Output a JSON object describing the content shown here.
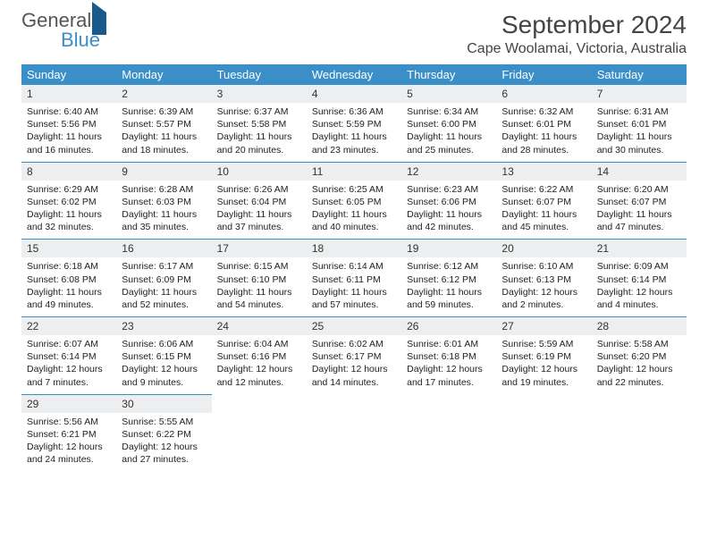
{
  "logo": {
    "text1": "General",
    "text2": "Blue"
  },
  "title": "September 2024",
  "location": "Cape Woolamai, Victoria, Australia",
  "day_headers": [
    "Sunday",
    "Monday",
    "Tuesday",
    "Wednesday",
    "Thursday",
    "Friday",
    "Saturday"
  ],
  "colors": {
    "header_bg": "#3a8fc8",
    "header_fg": "#ffffff",
    "daynum_bg": "#eceeef",
    "divider": "#3a8fc8",
    "text": "#222222"
  },
  "weeks": [
    [
      {
        "n": "1",
        "sr": "Sunrise: 6:40 AM",
        "ss": "Sunset: 5:56 PM",
        "dl": "Daylight: 11 hours and 16 minutes."
      },
      {
        "n": "2",
        "sr": "Sunrise: 6:39 AM",
        "ss": "Sunset: 5:57 PM",
        "dl": "Daylight: 11 hours and 18 minutes."
      },
      {
        "n": "3",
        "sr": "Sunrise: 6:37 AM",
        "ss": "Sunset: 5:58 PM",
        "dl": "Daylight: 11 hours and 20 minutes."
      },
      {
        "n": "4",
        "sr": "Sunrise: 6:36 AM",
        "ss": "Sunset: 5:59 PM",
        "dl": "Daylight: 11 hours and 23 minutes."
      },
      {
        "n": "5",
        "sr": "Sunrise: 6:34 AM",
        "ss": "Sunset: 6:00 PM",
        "dl": "Daylight: 11 hours and 25 minutes."
      },
      {
        "n": "6",
        "sr": "Sunrise: 6:32 AM",
        "ss": "Sunset: 6:01 PM",
        "dl": "Daylight: 11 hours and 28 minutes."
      },
      {
        "n": "7",
        "sr": "Sunrise: 6:31 AM",
        "ss": "Sunset: 6:01 PM",
        "dl": "Daylight: 11 hours and 30 minutes."
      }
    ],
    [
      {
        "n": "8",
        "sr": "Sunrise: 6:29 AM",
        "ss": "Sunset: 6:02 PM",
        "dl": "Daylight: 11 hours and 32 minutes."
      },
      {
        "n": "9",
        "sr": "Sunrise: 6:28 AM",
        "ss": "Sunset: 6:03 PM",
        "dl": "Daylight: 11 hours and 35 minutes."
      },
      {
        "n": "10",
        "sr": "Sunrise: 6:26 AM",
        "ss": "Sunset: 6:04 PM",
        "dl": "Daylight: 11 hours and 37 minutes."
      },
      {
        "n": "11",
        "sr": "Sunrise: 6:25 AM",
        "ss": "Sunset: 6:05 PM",
        "dl": "Daylight: 11 hours and 40 minutes."
      },
      {
        "n": "12",
        "sr": "Sunrise: 6:23 AM",
        "ss": "Sunset: 6:06 PM",
        "dl": "Daylight: 11 hours and 42 minutes."
      },
      {
        "n": "13",
        "sr": "Sunrise: 6:22 AM",
        "ss": "Sunset: 6:07 PM",
        "dl": "Daylight: 11 hours and 45 minutes."
      },
      {
        "n": "14",
        "sr": "Sunrise: 6:20 AM",
        "ss": "Sunset: 6:07 PM",
        "dl": "Daylight: 11 hours and 47 minutes."
      }
    ],
    [
      {
        "n": "15",
        "sr": "Sunrise: 6:18 AM",
        "ss": "Sunset: 6:08 PM",
        "dl": "Daylight: 11 hours and 49 minutes."
      },
      {
        "n": "16",
        "sr": "Sunrise: 6:17 AM",
        "ss": "Sunset: 6:09 PM",
        "dl": "Daylight: 11 hours and 52 minutes."
      },
      {
        "n": "17",
        "sr": "Sunrise: 6:15 AM",
        "ss": "Sunset: 6:10 PM",
        "dl": "Daylight: 11 hours and 54 minutes."
      },
      {
        "n": "18",
        "sr": "Sunrise: 6:14 AM",
        "ss": "Sunset: 6:11 PM",
        "dl": "Daylight: 11 hours and 57 minutes."
      },
      {
        "n": "19",
        "sr": "Sunrise: 6:12 AM",
        "ss": "Sunset: 6:12 PM",
        "dl": "Daylight: 11 hours and 59 minutes."
      },
      {
        "n": "20",
        "sr": "Sunrise: 6:10 AM",
        "ss": "Sunset: 6:13 PM",
        "dl": "Daylight: 12 hours and 2 minutes."
      },
      {
        "n": "21",
        "sr": "Sunrise: 6:09 AM",
        "ss": "Sunset: 6:14 PM",
        "dl": "Daylight: 12 hours and 4 minutes."
      }
    ],
    [
      {
        "n": "22",
        "sr": "Sunrise: 6:07 AM",
        "ss": "Sunset: 6:14 PM",
        "dl": "Daylight: 12 hours and 7 minutes."
      },
      {
        "n": "23",
        "sr": "Sunrise: 6:06 AM",
        "ss": "Sunset: 6:15 PM",
        "dl": "Daylight: 12 hours and 9 minutes."
      },
      {
        "n": "24",
        "sr": "Sunrise: 6:04 AM",
        "ss": "Sunset: 6:16 PM",
        "dl": "Daylight: 12 hours and 12 minutes."
      },
      {
        "n": "25",
        "sr": "Sunrise: 6:02 AM",
        "ss": "Sunset: 6:17 PM",
        "dl": "Daylight: 12 hours and 14 minutes."
      },
      {
        "n": "26",
        "sr": "Sunrise: 6:01 AM",
        "ss": "Sunset: 6:18 PM",
        "dl": "Daylight: 12 hours and 17 minutes."
      },
      {
        "n": "27",
        "sr": "Sunrise: 5:59 AM",
        "ss": "Sunset: 6:19 PM",
        "dl": "Daylight: 12 hours and 19 minutes."
      },
      {
        "n": "28",
        "sr": "Sunrise: 5:58 AM",
        "ss": "Sunset: 6:20 PM",
        "dl": "Daylight: 12 hours and 22 minutes."
      }
    ],
    [
      {
        "n": "29",
        "sr": "Sunrise: 5:56 AM",
        "ss": "Sunset: 6:21 PM",
        "dl": "Daylight: 12 hours and 24 minutes."
      },
      {
        "n": "30",
        "sr": "Sunrise: 5:55 AM",
        "ss": "Sunset: 6:22 PM",
        "dl": "Daylight: 12 hours and 27 minutes."
      },
      null,
      null,
      null,
      null,
      null
    ]
  ]
}
